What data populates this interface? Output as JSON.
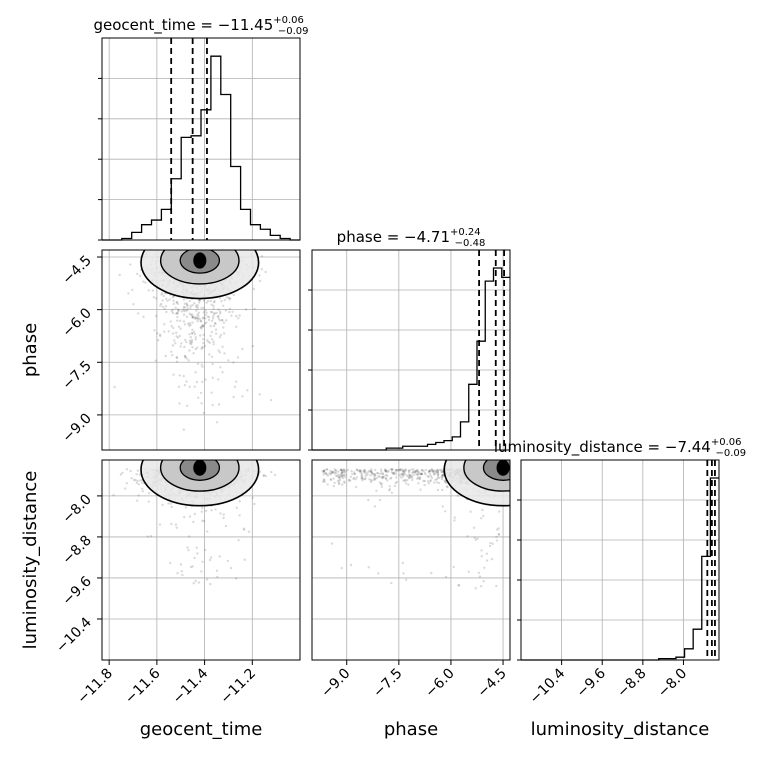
{
  "chart_data": {
    "type": "scatter",
    "plot_kind": "corner",
    "parameters": [
      "geocent_time",
      "phase",
      "luminosity_distance"
    ],
    "titles": [
      {
        "param": "geocent_time",
        "median": "−11.45",
        "plus": "+0.06",
        "minus": "−0.09",
        "prefix": "geocent_time = "
      },
      {
        "param": "phase",
        "median": "−4.71",
        "plus": "+0.24",
        "minus": "−0.48",
        "prefix": "phase = "
      },
      {
        "param": "luminosity_distance",
        "median": "−7.44",
        "plus": "+0.06",
        "minus": "−0.09",
        "prefix": "luminosity_distance = "
      }
    ],
    "ranges": {
      "geocent_time": [
        -11.83,
        -11.0
      ],
      "phase": [
        -10.0,
        -4.3
      ],
      "luminosity_distance": [
        -11.2,
        -7.3
      ]
    },
    "ticks": {
      "geocent_time": {
        "values": [
          -11.8,
          -11.6,
          -11.4,
          -11.2
        ],
        "labels": [
          "−11.8",
          "−11.6",
          "−11.4",
          "−11.2"
        ]
      },
      "phase": {
        "values": [
          -9.0,
          -7.5,
          -6.0,
          -4.5
        ],
        "labels": [
          "−9.0",
          "−7.5",
          "−6.0",
          "−4.5"
        ]
      },
      "luminosity_distance": {
        "values": [
          -10.4,
          -9.6,
          -8.8,
          -8.0
        ],
        "labels": [
          "−10.4",
          "−9.6",
          "−8.8",
          "−8.0"
        ]
      }
    },
    "quantiles": {
      "geocent_time": [
        -11.54,
        -11.45,
        -11.39
      ],
      "phase": [
        -5.19,
        -4.71,
        -4.47
      ],
      "luminosity_distance": [
        -7.53,
        -7.44,
        -7.38
      ]
    },
    "histograms": {
      "geocent_time": {
        "edges_from": -11.83,
        "edges_to": -11.0,
        "counts": [
          0,
          0,
          1,
          5,
          10,
          13,
          20,
          40,
          67,
          68,
          85,
          120,
          95,
          48,
          20,
          10,
          7,
          3,
          1,
          0
        ]
      },
      "phase": {
        "edges_from": -10.0,
        "edges_to": -4.3,
        "counts": [
          0,
          0,
          0,
          0,
          0,
          0,
          0,
          0,
          0,
          1,
          1,
          2,
          2,
          2,
          3,
          4,
          5,
          7,
          15,
          35,
          58,
          90,
          97,
          92
        ]
      },
      "luminosity_distance": {
        "edges_from": -11.2,
        "edges_to": -7.3,
        "counts": [
          0,
          0,
          0,
          0,
          0,
          0,
          0,
          0,
          0,
          0,
          0,
          0,
          0,
          0,
          0,
          0,
          1,
          1,
          2,
          8,
          22,
          74,
          130
        ]
      }
    },
    "density_2d": [
      {
        "x": "geocent_time",
        "y": "phase",
        "peak": [
          -11.42,
          -4.6
        ]
      },
      {
        "x": "geocent_time",
        "y": "luminosity_distance",
        "peak": [
          -11.42,
          -7.45
        ]
      },
      {
        "x": "phase",
        "y": "luminosity_distance",
        "peak": [
          -4.5,
          -7.45
        ]
      }
    ],
    "grid": true,
    "colors": {
      "line": "#000000",
      "points": "#555555",
      "grid": "#b0b0b0"
    }
  }
}
